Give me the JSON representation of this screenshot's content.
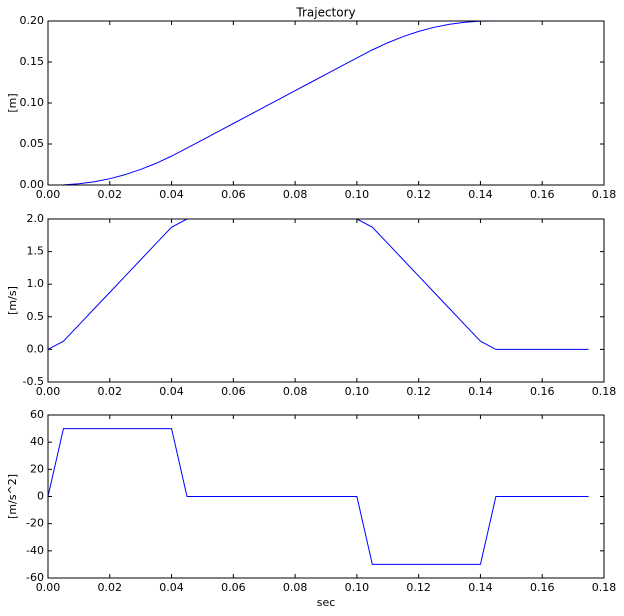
{
  "chart_data": [
    {
      "type": "line",
      "title": "Trajectory",
      "y_label": "[m]",
      "x": [
        0,
        0.005,
        0.01,
        0.015,
        0.02,
        0.025,
        0.03,
        0.035,
        0.04,
        0.045,
        0.05,
        0.055,
        0.06,
        0.065,
        0.07,
        0.075,
        0.08,
        0.085,
        0.09,
        0.095,
        0.1,
        0.105,
        0.11,
        0.115,
        0.12,
        0.125,
        0.13,
        0.135,
        0.14,
        0.145,
        0.15,
        0.155,
        0.16,
        0.165,
        0.17,
        0.175
      ],
      "values": [
        0,
        0.0002,
        0.0015,
        0.004,
        0.0077,
        0.0127,
        0.019,
        0.0265,
        0.0352,
        0.045,
        0.055,
        0.065,
        0.075,
        0.085,
        0.095,
        0.105,
        0.115,
        0.125,
        0.135,
        0.145,
        0.155,
        0.1648,
        0.1735,
        0.181,
        0.1873,
        0.1923,
        0.196,
        0.1985,
        0.1998,
        0.2,
        0.2,
        0.2,
        0.2,
        0.2,
        0.2,
        0.2
      ],
      "color": "#0000ff",
      "xlim": [
        0,
        0.18
      ],
      "xticks": [
        {
          "value": 0,
          "label": "0.00"
        },
        {
          "value": 0.02,
          "label": "0.02"
        },
        {
          "value": 0.04,
          "label": "0.04"
        },
        {
          "value": 0.06,
          "label": "0.06"
        },
        {
          "value": 0.08,
          "label": "0.08"
        },
        {
          "value": 0.1,
          "label": "0.10"
        },
        {
          "value": 0.12,
          "label": "0.12"
        },
        {
          "value": 0.14,
          "label": "0.14"
        },
        {
          "value": 0.16,
          "label": "0.16"
        },
        {
          "value": 0.18,
          "label": "0.18"
        }
      ],
      "ylim": [
        0,
        0.2
      ],
      "yticks": [
        {
          "value": 0,
          "label": "0.00"
        },
        0.05,
        {
          "value": 0.1,
          "label": "0.10"
        },
        0.15,
        {
          "value": 0.2,
          "label": "0.20"
        }
      ]
    },
    {
      "type": "line",
      "y_label": "[m/s]",
      "x": [
        0,
        0.005,
        0.01,
        0.015,
        0.02,
        0.025,
        0.03,
        0.035,
        0.04,
        0.045,
        0.05,
        0.055,
        0.06,
        0.065,
        0.07,
        0.075,
        0.08,
        0.085,
        0.09,
        0.095,
        0.1,
        0.105,
        0.11,
        0.115,
        0.12,
        0.125,
        0.13,
        0.135,
        0.14,
        0.145,
        0.15,
        0.155,
        0.16,
        0.165,
        0.17,
        0.175
      ],
      "values": [
        0,
        0.125,
        0.375,
        0.625,
        0.875,
        1.125,
        1.375,
        1.625,
        1.875,
        2,
        2,
        2,
        2,
        2,
        2,
        2,
        2,
        2,
        2,
        2,
        2,
        1.875,
        1.625,
        1.375,
        1.125,
        0.875,
        0.625,
        0.375,
        0.125,
        0,
        0,
        0,
        0,
        0,
        0,
        0
      ],
      "color": "#0000ff",
      "xlim": [
        0,
        0.18
      ],
      "xticks": [
        {
          "value": 0,
          "label": "0.00"
        },
        {
          "value": 0.02,
          "label": "0.02"
        },
        {
          "value": 0.04,
          "label": "0.04"
        },
        {
          "value": 0.06,
          "label": "0.06"
        },
        {
          "value": 0.08,
          "label": "0.08"
        },
        {
          "value": 0.1,
          "label": "0.10"
        },
        {
          "value": 0.12,
          "label": "0.12"
        },
        {
          "value": 0.14,
          "label": "0.14"
        },
        {
          "value": 0.16,
          "label": "0.16"
        },
        {
          "value": 0.18,
          "label": "0.18"
        }
      ],
      "ylim": [
        -0.5,
        2
      ],
      "yticks": [
        -0.5,
        {
          "value": 0,
          "label": "0.0"
        },
        0.5,
        {
          "value": 1,
          "label": "1.0"
        },
        1.5,
        {
          "value": 2,
          "label": "2.0"
        }
      ]
    },
    {
      "type": "line",
      "y_label": "[m/s^2]",
      "x_label": "sec",
      "x": [
        0,
        0.005,
        0.01,
        0.015,
        0.02,
        0.025,
        0.03,
        0.035,
        0.04,
        0.045,
        0.05,
        0.055,
        0.06,
        0.065,
        0.07,
        0.075,
        0.08,
        0.085,
        0.09,
        0.095,
        0.1,
        0.105,
        0.11,
        0.115,
        0.12,
        0.125,
        0.13,
        0.135,
        0.14,
        0.145,
        0.15,
        0.155,
        0.16,
        0.165,
        0.17,
        0.175
      ],
      "values": [
        0,
        50,
        50,
        50,
        50,
        50,
        50,
        50,
        50,
        0,
        0,
        0,
        0,
        0,
        0,
        0,
        0,
        0,
        0,
        0,
        0,
        -50,
        -50,
        -50,
        -50,
        -50,
        -50,
        -50,
        -50,
        0,
        0,
        0,
        0,
        0,
        0,
        0
      ],
      "color": "#0000ff",
      "xlim": [
        0,
        0.18
      ],
      "xticks": [
        {
          "value": 0,
          "label": "0.00"
        },
        {
          "value": 0.02,
          "label": "0.02"
        },
        {
          "value": 0.04,
          "label": "0.04"
        },
        {
          "value": 0.06,
          "label": "0.06"
        },
        {
          "value": 0.08,
          "label": "0.08"
        },
        {
          "value": 0.1,
          "label": "0.10"
        },
        {
          "value": 0.12,
          "label": "0.12"
        },
        {
          "value": 0.14,
          "label": "0.14"
        },
        {
          "value": 0.16,
          "label": "0.16"
        },
        {
          "value": 0.18,
          "label": "0.18"
        }
      ],
      "ylim": [
        -60,
        60
      ],
      "yticks": [
        -60,
        -40,
        -20,
        0,
        20,
        40,
        60
      ]
    }
  ]
}
